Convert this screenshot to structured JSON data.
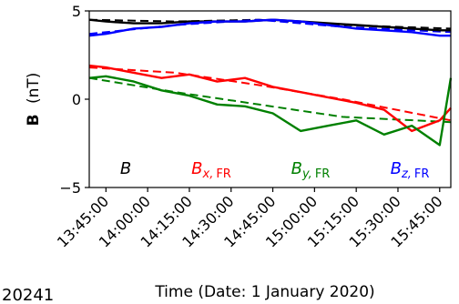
{
  "corner_text": "20241",
  "chart_data": {
    "type": "line",
    "xlabel": "Time (Date: 1 January 2020)",
    "ylabel_bold": "B",
    "ylabel_unit": "(nT)",
    "x_ticks": [
      "13:45:00",
      "14:00:00",
      "14:15:00",
      "14:30:00",
      "14:45:00",
      "15:00:00",
      "15:15:00",
      "15:30:00",
      "15:45:00"
    ],
    "x_tick_minutes": [
      825,
      840,
      855,
      870,
      885,
      900,
      915,
      930,
      945
    ],
    "xlim": [
      819,
      949
    ],
    "ylim": [
      -5,
      5
    ],
    "y_ticks": [
      -5,
      0,
      5
    ],
    "grid": false,
    "legend_position": "bottom-inside",
    "series": [
      {
        "name": "B",
        "sub": "",
        "color": "#000000",
        "kind": "observed",
        "x": [
          819,
          825,
          835,
          845,
          855,
          865,
          875,
          885,
          895,
          905,
          915,
          925,
          935,
          945,
          949
        ],
        "y": [
          4.5,
          4.4,
          4.3,
          4.3,
          4.4,
          4.4,
          4.4,
          4.5,
          4.4,
          4.3,
          4.2,
          4.1,
          4.0,
          3.9,
          3.9
        ]
      },
      {
        "name": "B",
        "sub": "z, FR",
        "color": "#0000ff",
        "kind": "observed",
        "x": [
          819,
          825,
          835,
          845,
          855,
          865,
          875,
          885,
          895,
          905,
          915,
          925,
          935,
          945,
          949
        ],
        "y": [
          3.6,
          3.7,
          4.0,
          4.1,
          4.3,
          4.4,
          4.4,
          4.5,
          4.4,
          4.2,
          4.0,
          3.9,
          3.8,
          3.6,
          3.6
        ]
      },
      {
        "name": "B",
        "sub": "x, FR",
        "color": "#ff0000",
        "kind": "observed",
        "x": [
          819,
          825,
          835,
          845,
          855,
          865,
          875,
          885,
          895,
          905,
          915,
          925,
          935,
          945,
          949
        ],
        "y": [
          1.9,
          1.8,
          1.5,
          1.2,
          1.4,
          1.0,
          1.2,
          0.7,
          0.4,
          0.1,
          -0.2,
          -0.6,
          -1.8,
          -1.2,
          -0.5
        ]
      },
      {
        "name": "B",
        "sub": "y, FR",
        "color": "#008000",
        "kind": "observed",
        "x": [
          819,
          825,
          835,
          845,
          855,
          865,
          875,
          885,
          895,
          905,
          915,
          925,
          935,
          945,
          949
        ],
        "y": [
          1.2,
          1.3,
          1.0,
          0.5,
          0.2,
          -0.3,
          -0.4,
          -0.8,
          -1.8,
          -1.5,
          -1.2,
          -2.0,
          -1.5,
          -2.6,
          1.2
        ]
      },
      {
        "name": "",
        "sub": "",
        "color": "#000000",
        "kind": "fit",
        "x": [
          819,
          850,
          880,
          910,
          949
        ],
        "y": [
          4.5,
          4.4,
          4.5,
          4.2,
          4.0
        ]
      },
      {
        "name": "",
        "sub": "",
        "color": "#0000ff",
        "kind": "fit",
        "x": [
          819,
          850,
          880,
          910,
          949
        ],
        "y": [
          3.7,
          4.2,
          4.5,
          4.1,
          3.8
        ]
      },
      {
        "name": "",
        "sub": "",
        "color": "#ff0000",
        "kind": "fit",
        "x": [
          819,
          850,
          880,
          910,
          949
        ],
        "y": [
          1.8,
          1.5,
          0.8,
          0.0,
          -1.2
        ]
      },
      {
        "name": "",
        "sub": "",
        "color": "#008000",
        "kind": "fit",
        "x": [
          819,
          850,
          880,
          910,
          949
        ],
        "y": [
          1.2,
          0.4,
          -0.3,
          -1.0,
          -1.3
        ]
      }
    ]
  }
}
